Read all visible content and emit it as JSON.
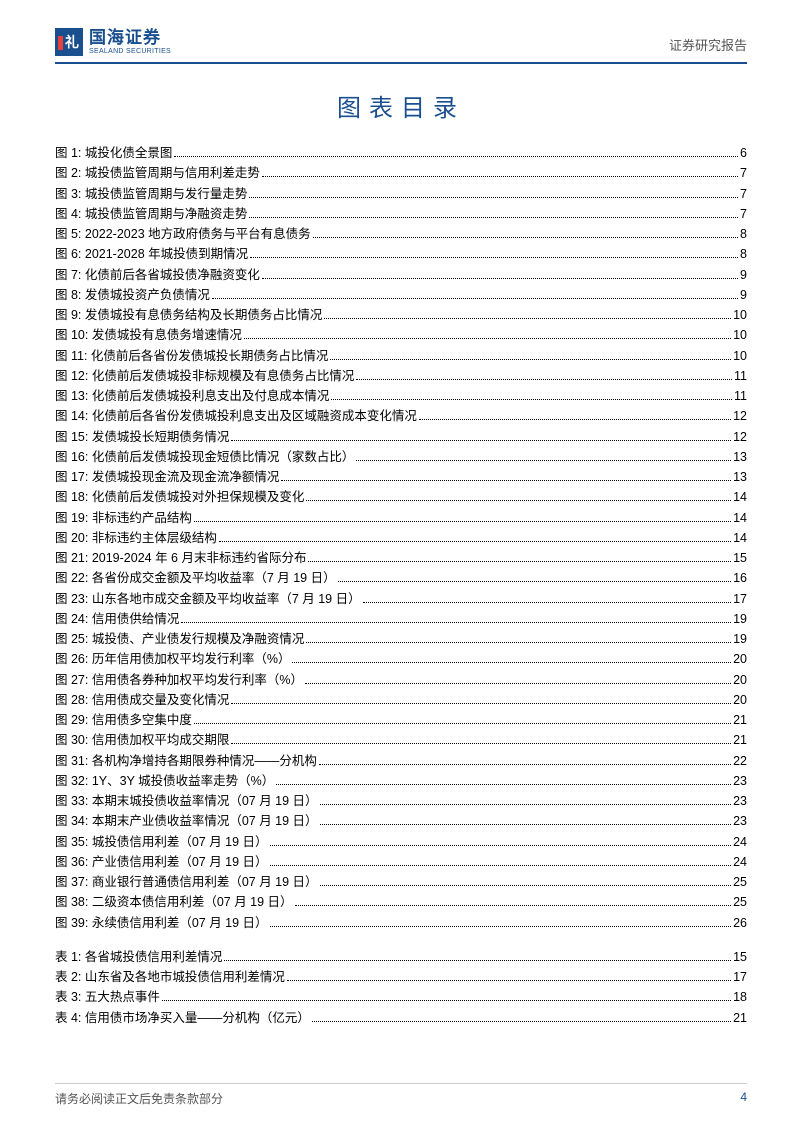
{
  "header": {
    "logo_cn": "国海证券",
    "logo_en": "SEALAND SECURITIES",
    "right_text": "证券研究报告"
  },
  "toc_title": "图表目录",
  "figures": [
    {
      "prefix": "图 1:",
      "label": "城投化债全景图",
      "page": "6"
    },
    {
      "prefix": "图 2:",
      "label": "城投债监管周期与信用利差走势",
      "page": "7"
    },
    {
      "prefix": "图 3:",
      "label": "城投债监管周期与发行量走势",
      "page": "7"
    },
    {
      "prefix": "图 4:",
      "label": "城投债监管周期与净融资走势",
      "page": "7"
    },
    {
      "prefix": "图 5:",
      "label": "2022-2023 地方政府债务与平台有息债务",
      "page": "8"
    },
    {
      "prefix": "图 6:",
      "label": "2021-2028 年城投债到期情况",
      "page": "8"
    },
    {
      "prefix": "图 7:",
      "label": "化债前后各省城投债净融资变化",
      "page": "9"
    },
    {
      "prefix": "图 8:",
      "label": "发债城投资产负债情况",
      "page": "9"
    },
    {
      "prefix": "图 9:",
      "label": "发债城投有息债务结构及长期债务占比情况",
      "page": "10"
    },
    {
      "prefix": "图 10:",
      "label": "发债城投有息债务增速情况",
      "page": "10"
    },
    {
      "prefix": "图 11:",
      "label": "化债前后各省份发债城投长期债务占比情况",
      "page": "10"
    },
    {
      "prefix": "图 12:",
      "label": "化债前后发债城投非标规模及有息债务占比情况",
      "page": "11"
    },
    {
      "prefix": "图 13:",
      "label": "化债前后发债城投利息支出及付息成本情况",
      "page": "11"
    },
    {
      "prefix": "图 14:",
      "label": "化债前后各省份发债城投利息支出及区域融资成本变化情况",
      "page": "12"
    },
    {
      "prefix": "图 15:",
      "label": "发债城投长短期债务情况",
      "page": "12"
    },
    {
      "prefix": "图 16:",
      "label": "化债前后发债城投现金短债比情况（家数占比）",
      "page": "13"
    },
    {
      "prefix": "图 17:",
      "label": "发债城投现金流及现金流净额情况",
      "page": "13"
    },
    {
      "prefix": "图 18:",
      "label": "化债前后发债城投对外担保规模及变化",
      "page": "14"
    },
    {
      "prefix": "图 19:",
      "label": "非标违约产品结构",
      "page": "14"
    },
    {
      "prefix": "图 20:",
      "label": "非标违约主体层级结构",
      "page": "14"
    },
    {
      "prefix": "图 21:",
      "label": "2019-2024 年 6 月末非标违约省际分布",
      "page": "15"
    },
    {
      "prefix": "图 22:",
      "label": "各省份成交金额及平均收益率（7 月 19 日）",
      "page": "16"
    },
    {
      "prefix": "图 23:",
      "label": "山东各地市成交金额及平均收益率（7 月 19 日）",
      "page": "17"
    },
    {
      "prefix": "图 24:",
      "label": "信用债供给情况",
      "page": "19"
    },
    {
      "prefix": "图 25:",
      "label": "城投债、产业债发行规模及净融资情况",
      "page": "19"
    },
    {
      "prefix": "图 26:",
      "label": "历年信用债加权平均发行利率（%）",
      "page": "20"
    },
    {
      "prefix": "图 27:",
      "label": "信用债各券种加权平均发行利率（%）",
      "page": "20"
    },
    {
      "prefix": "图 28:",
      "label": "信用债成交量及变化情况",
      "page": "20"
    },
    {
      "prefix": "图 29:",
      "label": "信用债多空集中度",
      "page": "21"
    },
    {
      "prefix": "图 30:",
      "label": "信用债加权平均成交期限",
      "page": "21"
    },
    {
      "prefix": "图 31:",
      "label": "各机构净增持各期限券种情况——分机构",
      "page": "22"
    },
    {
      "prefix": "图 32:",
      "label": "1Y、3Y 城投债收益率走势（%）",
      "page": "23"
    },
    {
      "prefix": "图 33:",
      "label": "本期末城投债收益率情况（07 月 19 日）",
      "page": "23"
    },
    {
      "prefix": "图 34:",
      "label": "本期末产业债收益率情况（07 月 19 日）",
      "page": "23"
    },
    {
      "prefix": "图 35:",
      "label": "城投债信用利差（07 月 19 日）",
      "page": "24"
    },
    {
      "prefix": "图 36:",
      "label": "产业债信用利差（07 月 19 日）",
      "page": "24"
    },
    {
      "prefix": "图 37:",
      "label": "商业银行普通债信用利差（07 月 19 日）",
      "page": "25"
    },
    {
      "prefix": "图 38:",
      "label": "二级资本债信用利差（07 月 19 日）",
      "page": "25"
    },
    {
      "prefix": "图 39:",
      "label": "永续债信用利差（07 月 19 日）",
      "page": "26"
    }
  ],
  "tables": [
    {
      "prefix": "表 1:",
      "label": "各省城投债信用利差情况",
      "page": "15"
    },
    {
      "prefix": "表 2:",
      "label": "山东省及各地市城投债信用利差情况",
      "page": "17"
    },
    {
      "prefix": "表 3:",
      "label": "五大热点事件",
      "page": "18"
    },
    {
      "prefix": "表 4:",
      "label": "信用债市场净买入量——分机构（亿元）",
      "page": "21"
    }
  ],
  "footer": {
    "left": "请务必阅读正文后免责条款部分",
    "page_number": "4"
  },
  "colors": {
    "brand_blue": "#1a4f8f",
    "accent_red": "#e8413a",
    "text_gray": "#555555",
    "divider_gray": "#cccccc"
  },
  "typography": {
    "title_fontsize": 24,
    "body_fontsize": 12.5,
    "header_right_fontsize": 13,
    "footer_fontsize": 12
  }
}
